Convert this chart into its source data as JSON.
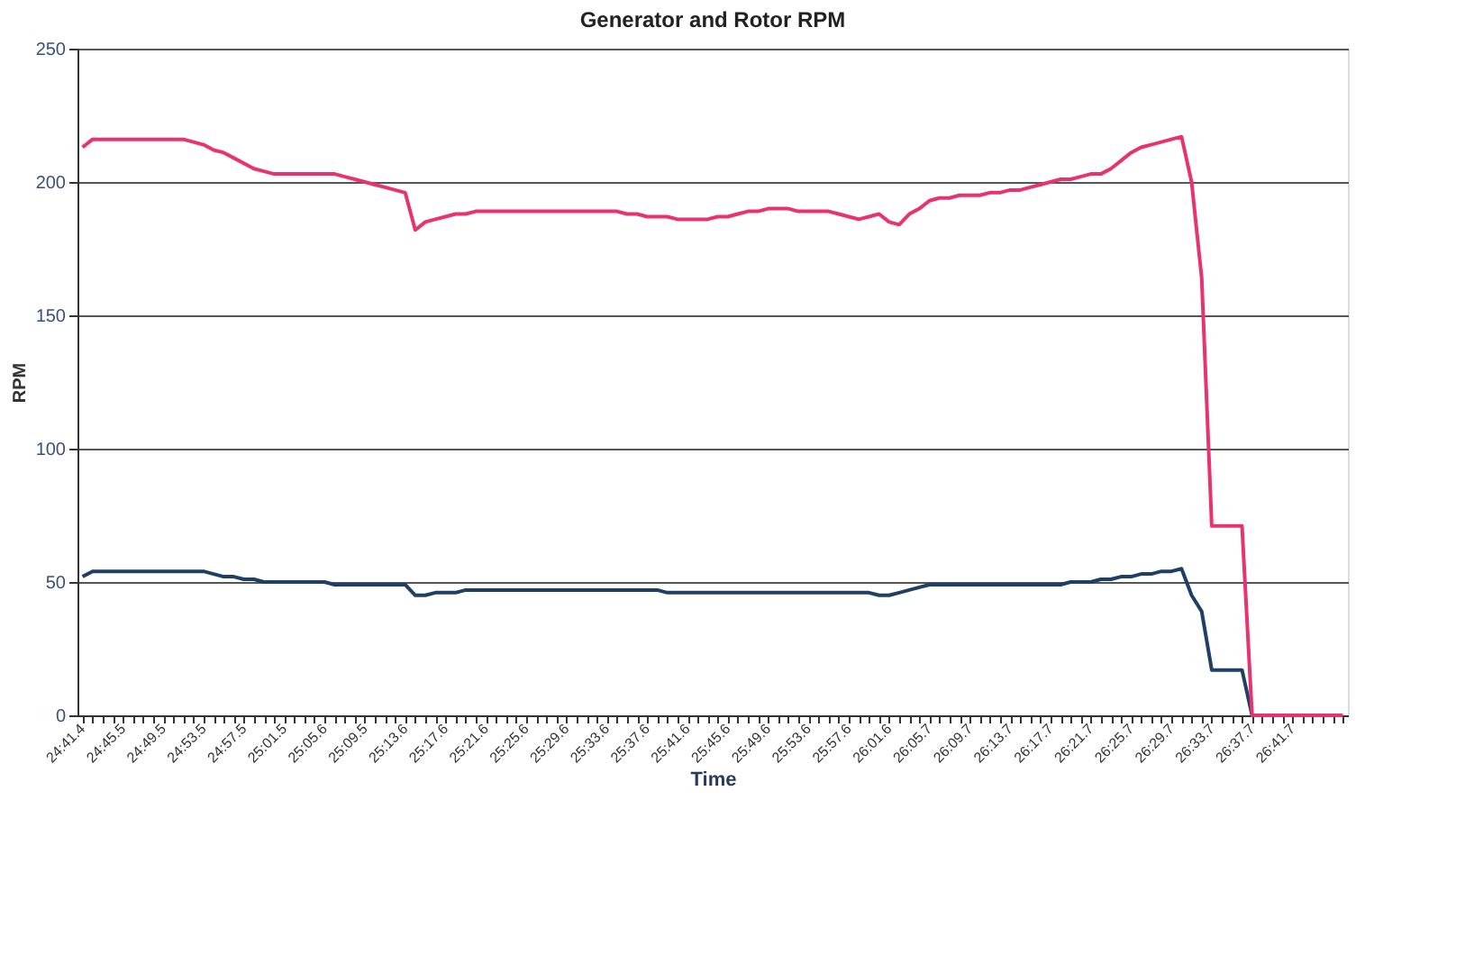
{
  "chart_data": {
    "type": "line",
    "title": "Generator and Rotor RPM",
    "xlabel": "Time",
    "ylabel": "RPM",
    "categories": [
      "24:41.4",
      null,
      null,
      null,
      "24:45.5",
      null,
      null,
      null,
      "24:49.5",
      null,
      null,
      null,
      "24:53.5",
      null,
      null,
      null,
      "24:57.5",
      null,
      null,
      null,
      "25:01.5",
      null,
      null,
      null,
      "25:05.6",
      null,
      null,
      null,
      "25:09.5",
      null,
      null,
      null,
      "25:13.6",
      null,
      null,
      null,
      "25:17.6",
      null,
      null,
      null,
      "25:21.6",
      null,
      null,
      null,
      "25:25.6",
      null,
      null,
      null,
      "25:29.6",
      null,
      null,
      null,
      "25:33.6",
      null,
      null,
      null,
      "25:37.6",
      null,
      null,
      null,
      "25:41.6",
      null,
      null,
      null,
      "25:45.6",
      null,
      null,
      null,
      "25:49.6",
      null,
      null,
      null,
      "25:53.6",
      null,
      null,
      null,
      "25:57.6",
      null,
      null,
      null,
      "26:01.6",
      null,
      null,
      null,
      "26:05.7",
      null,
      null,
      null,
      "26:09.7",
      null,
      null,
      null,
      "26:13.7",
      null,
      null,
      null,
      "26:17.7",
      null,
      null,
      null,
      "26:21.7",
      null,
      null,
      null,
      "26:25.7",
      null,
      null,
      null,
      "26:29.7",
      null,
      null,
      null,
      "26:33.7",
      null,
      null,
      null,
      "26:37.7",
      null,
      null,
      null,
      "26:41.7",
      null,
      null,
      null,
      null,
      null
    ],
    "ylim": [
      0,
      250
    ],
    "yticks": [
      0,
      50,
      100,
      150,
      200,
      250
    ],
    "grid": "y",
    "marker": "none",
    "line_style": "solid",
    "series": [
      {
        "color": "#e8336f",
        "values": [
          213,
          216,
          216,
          216,
          216,
          216,
          216,
          216,
          216,
          216,
          216,
          215,
          214,
          212,
          211,
          209,
          207,
          205,
          204,
          203,
          203,
          203,
          203,
          203,
          203,
          203,
          202,
          201,
          200,
          199,
          198,
          197,
          196,
          182,
          185,
          186,
          187,
          188,
          188,
          189,
          189,
          189,
          189,
          189,
          189,
          189,
          189,
          189,
          189,
          189,
          189,
          189,
          189,
          189,
          188,
          188,
          187,
          187,
          187,
          186,
          186,
          186,
          186,
          187,
          187,
          188,
          189,
          189,
          190,
          190,
          190,
          189,
          189,
          189,
          189,
          188,
          187,
          186,
          187,
          188,
          185,
          184,
          188,
          190,
          193,
          194,
          194,
          195,
          195,
          195,
          196,
          196,
          197,
          197,
          198,
          199,
          200,
          201,
          201,
          202,
          203,
          203,
          205,
          208,
          211,
          213,
          214,
          215,
          216,
          217,
          200,
          164,
          71,
          71,
          71,
          71,
          0,
          0,
          0,
          0,
          0,
          0,
          0,
          0,
          0,
          0
        ]
      },
      {
        "color": "#1f3f66",
        "values": [
          52,
          54,
          54,
          54,
          54,
          54,
          54,
          54,
          54,
          54,
          54,
          54,
          54,
          53,
          52,
          52,
          51,
          51,
          50,
          50,
          50,
          50,
          50,
          50,
          50,
          49,
          49,
          49,
          49,
          49,
          49,
          49,
          49,
          45,
          45,
          46,
          46,
          46,
          47,
          47,
          47,
          47,
          47,
          47,
          47,
          47,
          47,
          47,
          47,
          47,
          47,
          47,
          47,
          47,
          47,
          47,
          47,
          47,
          46,
          46,
          46,
          46,
          46,
          46,
          46,
          46,
          46,
          46,
          46,
          46,
          46,
          46,
          46,
          46,
          46,
          46,
          46,
          46,
          46,
          45,
          45,
          46,
          47,
          48,
          49,
          49,
          49,
          49,
          49,
          49,
          49,
          49,
          49,
          49,
          49,
          49,
          49,
          49,
          50,
          50,
          50,
          51,
          51,
          52,
          52,
          53,
          53,
          54,
          54,
          55,
          45,
          39,
          17,
          17,
          17,
          17,
          0,
          0,
          null,
          null,
          null,
          null,
          null,
          null,
          null,
          null
        ]
      }
    ]
  }
}
